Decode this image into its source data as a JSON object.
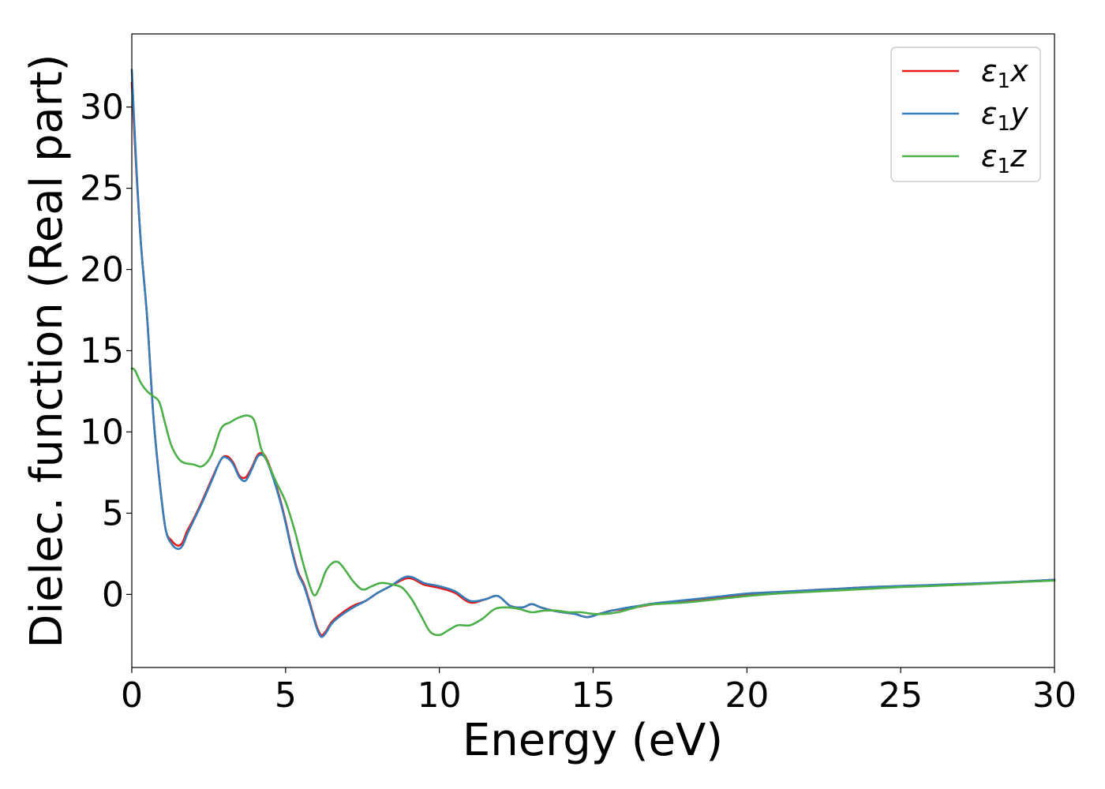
{
  "chart_data": {
    "type": "line",
    "title": "",
    "xlabel": "Energy (eV)",
    "ylabel": "Dielec. function (Real part)",
    "xlim": [
      0,
      30
    ],
    "ylim": [
      -4.5,
      34.5
    ],
    "xticks": [
      0,
      5,
      10,
      15,
      20,
      25,
      30
    ],
    "yticks": [
      0,
      5,
      10,
      15,
      20,
      25,
      30
    ],
    "grid": false,
    "legend_position": "top-right",
    "series": [
      {
        "name": "ε₁x",
        "legend_symbol": "ε",
        "legend_sub": "1",
        "legend_suffix": "x",
        "color": "#e41a1c",
        "x": [
          0,
          0.15,
          0.3,
          0.5,
          0.7,
          0.9,
          1.1,
          1.3,
          1.5,
          1.65,
          1.8,
          2.0,
          2.3,
          2.6,
          2.9,
          3.1,
          3.3,
          3.5,
          3.7,
          3.9,
          4.1,
          4.3,
          4.5,
          4.8,
          5.0,
          5.2,
          5.4,
          5.6,
          5.8,
          6.0,
          6.15,
          6.3,
          6.5,
          6.8,
          7.2,
          7.6,
          8.0,
          8.4,
          8.8,
          9.0,
          9.2,
          9.5,
          10.0,
          10.5,
          11.0,
          11.5,
          11.9,
          12.3,
          12.7,
          13.0,
          13.3,
          13.7,
          14.0,
          14.4,
          14.8,
          15.2,
          15.6,
          16.0,
          16.5,
          17.0,
          18.0,
          19.0,
          20.0,
          21.0,
          22.0,
          23.0,
          24.0,
          25.0,
          26.0,
          27.0,
          28.0,
          29.0,
          30.0
        ],
        "y": [
          31.5,
          26,
          21.5,
          17,
          11,
          7,
          4,
          3.3,
          3.0,
          3.2,
          3.9,
          4.6,
          5.8,
          7.1,
          8.3,
          8.5,
          8.1,
          7.3,
          7.2,
          7.8,
          8.6,
          8.6,
          7.8,
          6.0,
          4.5,
          2.8,
          1.4,
          0.6,
          -0.6,
          -1.9,
          -2.5,
          -2.3,
          -1.7,
          -1.2,
          -0.7,
          -0.4,
          0.1,
          0.5,
          0.9,
          1.0,
          0.9,
          0.6,
          0.4,
          0.1,
          -0.5,
          -0.3,
          -0.1,
          -0.7,
          -0.8,
          -0.6,
          -0.8,
          -1.0,
          -1.1,
          -1.2,
          -1.4,
          -1.2,
          -1.0,
          -0.9,
          -0.75,
          -0.6,
          -0.4,
          -0.2,
          0,
          0.1,
          0.25,
          0.35,
          0.45,
          0.5,
          0.55,
          0.6,
          0.7,
          0.8,
          0.9
        ]
      },
      {
        "name": "ε₁y",
        "legend_symbol": "ε",
        "legend_sub": "1",
        "legend_suffix": "y",
        "color": "#377eb8",
        "x": [
          0,
          0.15,
          0.3,
          0.5,
          0.7,
          0.9,
          1.1,
          1.3,
          1.5,
          1.65,
          1.8,
          2.0,
          2.3,
          2.6,
          2.9,
          3.1,
          3.3,
          3.5,
          3.7,
          3.9,
          4.1,
          4.3,
          4.5,
          4.8,
          5.0,
          5.2,
          5.4,
          5.6,
          5.8,
          6.0,
          6.15,
          6.3,
          6.5,
          6.8,
          7.2,
          7.6,
          8.0,
          8.4,
          8.8,
          9.0,
          9.2,
          9.5,
          10.0,
          10.5,
          11.0,
          11.5,
          11.9,
          12.3,
          12.7,
          13.0,
          13.3,
          13.7,
          14.0,
          14.4,
          14.8,
          15.2,
          15.6,
          16.0,
          16.5,
          17.0,
          18.0,
          19.0,
          20.0,
          21.0,
          22.0,
          23.0,
          24.0,
          25.0,
          26.0,
          27.0,
          28.0,
          29.0,
          30.0
        ],
        "y": [
          32.3,
          26.3,
          21.5,
          17,
          11,
          7,
          4,
          3.1,
          2.8,
          3.0,
          3.7,
          4.5,
          5.7,
          7.0,
          8.3,
          8.4,
          8.0,
          7.2,
          7.0,
          7.7,
          8.5,
          8.5,
          7.7,
          5.9,
          4.4,
          2.7,
          1.3,
          0.5,
          -0.7,
          -2.0,
          -2.6,
          -2.4,
          -1.8,
          -1.3,
          -0.8,
          -0.4,
          0.1,
          0.5,
          1.0,
          1.1,
          1.0,
          0.7,
          0.5,
          0.2,
          -0.4,
          -0.3,
          -0.1,
          -0.7,
          -0.8,
          -0.6,
          -0.8,
          -1.0,
          -1.1,
          -1.2,
          -1.4,
          -1.2,
          -1.0,
          -0.85,
          -0.7,
          -0.55,
          -0.35,
          -0.15,
          0.05,
          0.15,
          0.25,
          0.35,
          0.45,
          0.52,
          0.58,
          0.65,
          0.72,
          0.8,
          0.9
        ]
      },
      {
        "name": "ε₁z",
        "legend_symbol": "ε",
        "legend_sub": "1",
        "legend_suffix": "z",
        "color": "#4daf4a",
        "x": [
          0,
          0.1,
          0.3,
          0.5,
          0.7,
          0.9,
          1.1,
          1.3,
          1.6,
          2.0,
          2.3,
          2.6,
          2.9,
          3.2,
          3.5,
          3.8,
          4.0,
          4.2,
          4.4,
          4.7,
          5.0,
          5.3,
          5.6,
          5.9,
          6.1,
          6.3,
          6.5,
          6.7,
          6.9,
          7.2,
          7.5,
          7.8,
          8.1,
          8.5,
          8.8,
          9.1,
          9.4,
          9.7,
          10.0,
          10.3,
          10.6,
          11.0,
          11.4,
          11.8,
          12.2,
          12.6,
          13.0,
          13.4,
          13.8,
          14.2,
          14.6,
          15.0,
          15.4,
          15.8,
          16.2,
          16.6,
          17.0,
          18.0,
          19.0,
          20.0,
          21.0,
          22.0,
          23.0,
          24.0,
          25.0,
          26.0,
          27.0,
          28.0,
          29.0,
          30.0
        ],
        "y": [
          13.9,
          13.8,
          13.0,
          12.5,
          12.2,
          11.8,
          10.4,
          9.1,
          8.2,
          8.0,
          7.9,
          8.6,
          10.2,
          10.6,
          10.9,
          11.0,
          10.6,
          9.0,
          8.2,
          6.9,
          5.7,
          3.9,
          1.7,
          0.0,
          0.4,
          1.4,
          1.9,
          2.0,
          1.6,
          0.8,
          0.3,
          0.5,
          0.7,
          0.6,
          0.4,
          -0.3,
          -1.3,
          -2.3,
          -2.5,
          -2.2,
          -1.9,
          -1.9,
          -1.5,
          -0.9,
          -0.8,
          -0.9,
          -1.1,
          -1.0,
          -1.0,
          -1.1,
          -1.1,
          -1.2,
          -1.2,
          -1.1,
          -0.9,
          -0.7,
          -0.6,
          -0.5,
          -0.3,
          -0.1,
          0.05,
          0.15,
          0.25,
          0.35,
          0.45,
          0.52,
          0.6,
          0.68,
          0.77,
          0.85
        ]
      }
    ]
  }
}
